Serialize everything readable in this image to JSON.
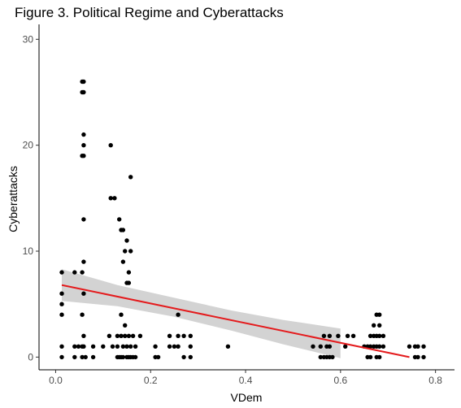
{
  "chart_data": {
    "type": "scatter",
    "title": "Figure 3. Political Regime and Cyberattacks",
    "xlabel": "VDem",
    "ylabel": "Cyberattacks",
    "xlim": [
      -0.035,
      0.84
    ],
    "ylim": [
      -1.2,
      31.1
    ],
    "xticks": [
      0.0,
      0.2,
      0.4,
      0.6,
      0.8
    ],
    "xtick_labels": [
      "0.0",
      "0.2",
      "0.4",
      "0.6",
      "0.8"
    ],
    "yticks": [
      0,
      10,
      20,
      30
    ],
    "ytick_labels": [
      "0",
      "10",
      "20",
      "30"
    ],
    "grid": false,
    "colors": {
      "points": "#000000",
      "fit_line": "#e41a1c",
      "confidence_band": "#d3d3d3"
    },
    "points": [
      {
        "x": 0.013,
        "y": 8
      },
      {
        "x": 0.013,
        "y": 6
      },
      {
        "x": 0.013,
        "y": 5
      },
      {
        "x": 0.013,
        "y": 4
      },
      {
        "x": 0.013,
        "y": 1
      },
      {
        "x": 0.013,
        "y": 0
      },
      {
        "x": 0.04,
        "y": 8
      },
      {
        "x": 0.04,
        "y": 1
      },
      {
        "x": 0.04,
        "y": 0
      },
      {
        "x": 0.048,
        "y": 1
      },
      {
        "x": 0.056,
        "y": 26
      },
      {
        "x": 0.056,
        "y": 25
      },
      {
        "x": 0.056,
        "y": 19
      },
      {
        "x": 0.056,
        "y": 8
      },
      {
        "x": 0.056,
        "y": 4
      },
      {
        "x": 0.056,
        "y": 1
      },
      {
        "x": 0.056,
        "y": 0
      },
      {
        "x": 0.059,
        "y": 26
      },
      {
        "x": 0.059,
        "y": 25
      },
      {
        "x": 0.059,
        "y": 21
      },
      {
        "x": 0.059,
        "y": 20
      },
      {
        "x": 0.059,
        "y": 19
      },
      {
        "x": 0.059,
        "y": 13
      },
      {
        "x": 0.059,
        "y": 9
      },
      {
        "x": 0.059,
        "y": 6
      },
      {
        "x": 0.059,
        "y": 2
      },
      {
        "x": 0.059,
        "y": 1
      },
      {
        "x": 0.063,
        "y": 0
      },
      {
        "x": 0.079,
        "y": 1
      },
      {
        "x": 0.079,
        "y": 0
      },
      {
        "x": 0.1,
        "y": 1
      },
      {
        "x": 0.113,
        "y": 2
      },
      {
        "x": 0.116,
        "y": 20
      },
      {
        "x": 0.116,
        "y": 15
      },
      {
        "x": 0.12,
        "y": 1
      },
      {
        "x": 0.124,
        "y": 15
      },
      {
        "x": 0.13,
        "y": 2
      },
      {
        "x": 0.13,
        "y": 1
      },
      {
        "x": 0.13,
        "y": 0
      },
      {
        "x": 0.134,
        "y": 13
      },
      {
        "x": 0.134,
        "y": 0
      },
      {
        "x": 0.138,
        "y": 12
      },
      {
        "x": 0.138,
        "y": 4
      },
      {
        "x": 0.138,
        "y": 2
      },
      {
        "x": 0.138,
        "y": 0
      },
      {
        "x": 0.142,
        "y": 12
      },
      {
        "x": 0.142,
        "y": 9
      },
      {
        "x": 0.142,
        "y": 1
      },
      {
        "x": 0.142,
        "y": 0
      },
      {
        "x": 0.146,
        "y": 10
      },
      {
        "x": 0.146,
        "y": 3
      },
      {
        "x": 0.146,
        "y": 2
      },
      {
        "x": 0.15,
        "y": 11
      },
      {
        "x": 0.15,
        "y": 7
      },
      {
        "x": 0.15,
        "y": 1
      },
      {
        "x": 0.15,
        "y": 0
      },
      {
        "x": 0.154,
        "y": 8
      },
      {
        "x": 0.154,
        "y": 7
      },
      {
        "x": 0.154,
        "y": 2
      },
      {
        "x": 0.154,
        "y": 0
      },
      {
        "x": 0.158,
        "y": 17
      },
      {
        "x": 0.158,
        "y": 10
      },
      {
        "x": 0.158,
        "y": 1
      },
      {
        "x": 0.158,
        "y": 0
      },
      {
        "x": 0.163,
        "y": 2
      },
      {
        "x": 0.163,
        "y": 0
      },
      {
        "x": 0.168,
        "y": 1
      },
      {
        "x": 0.168,
        "y": 0
      },
      {
        "x": 0.178,
        "y": 2
      },
      {
        "x": 0.21,
        "y": 1
      },
      {
        "x": 0.21,
        "y": 0
      },
      {
        "x": 0.216,
        "y": 0
      },
      {
        "x": 0.24,
        "y": 2
      },
      {
        "x": 0.24,
        "y": 1
      },
      {
        "x": 0.25,
        "y": 1
      },
      {
        "x": 0.258,
        "y": 4
      },
      {
        "x": 0.258,
        "y": 2
      },
      {
        "x": 0.258,
        "y": 1
      },
      {
        "x": 0.27,
        "y": 2
      },
      {
        "x": 0.27,
        "y": 0
      },
      {
        "x": 0.284,
        "y": 2
      },
      {
        "x": 0.284,
        "y": 1
      },
      {
        "x": 0.284,
        "y": 0
      },
      {
        "x": 0.363,
        "y": 1
      },
      {
        "x": 0.542,
        "y": 1
      },
      {
        "x": 0.558,
        "y": 1
      },
      {
        "x": 0.558,
        "y": 0
      },
      {
        "x": 0.565,
        "y": 2
      },
      {
        "x": 0.565,
        "y": 0
      },
      {
        "x": 0.571,
        "y": 1
      },
      {
        "x": 0.571,
        "y": 0
      },
      {
        "x": 0.577,
        "y": 2
      },
      {
        "x": 0.577,
        "y": 1
      },
      {
        "x": 0.577,
        "y": 0
      },
      {
        "x": 0.583,
        "y": 0
      },
      {
        "x": 0.595,
        "y": 2
      },
      {
        "x": 0.61,
        "y": 1
      },
      {
        "x": 0.615,
        "y": 2
      },
      {
        "x": 0.627,
        "y": 2
      },
      {
        "x": 0.65,
        "y": 1
      },
      {
        "x": 0.657,
        "y": 1
      },
      {
        "x": 0.657,
        "y": 0
      },
      {
        "x": 0.663,
        "y": 2
      },
      {
        "x": 0.663,
        "y": 1
      },
      {
        "x": 0.663,
        "y": 0
      },
      {
        "x": 0.67,
        "y": 3
      },
      {
        "x": 0.67,
        "y": 2
      },
      {
        "x": 0.67,
        "y": 1
      },
      {
        "x": 0.676,
        "y": 4
      },
      {
        "x": 0.676,
        "y": 2
      },
      {
        "x": 0.676,
        "y": 1
      },
      {
        "x": 0.676,
        "y": 0
      },
      {
        "x": 0.682,
        "y": 4
      },
      {
        "x": 0.682,
        "y": 3
      },
      {
        "x": 0.682,
        "y": 2
      },
      {
        "x": 0.682,
        "y": 1
      },
      {
        "x": 0.682,
        "y": 0
      },
      {
        "x": 0.69,
        "y": 2
      },
      {
        "x": 0.69,
        "y": 1
      },
      {
        "x": 0.745,
        "y": 1
      },
      {
        "x": 0.757,
        "y": 1
      },
      {
        "x": 0.757,
        "y": 0
      },
      {
        "x": 0.763,
        "y": 1
      },
      {
        "x": 0.763,
        "y": 0
      },
      {
        "x": 0.775,
        "y": 1
      },
      {
        "x": 0.775,
        "y": 0
      }
    ],
    "fit_line": {
      "x": [
        0.013,
        0.745
      ],
      "y": [
        6.8,
        0.0
      ]
    },
    "confidence_band": {
      "x": [
        0.013,
        0.13,
        0.25,
        0.37,
        0.48,
        0.6
      ],
      "upper": [
        8.3,
        6.8,
        5.6,
        4.4,
        3.5,
        2.7
      ],
      "lower": [
        5.3,
        4.8,
        3.8,
        2.5,
        1.2,
        -0.1
      ]
    }
  }
}
